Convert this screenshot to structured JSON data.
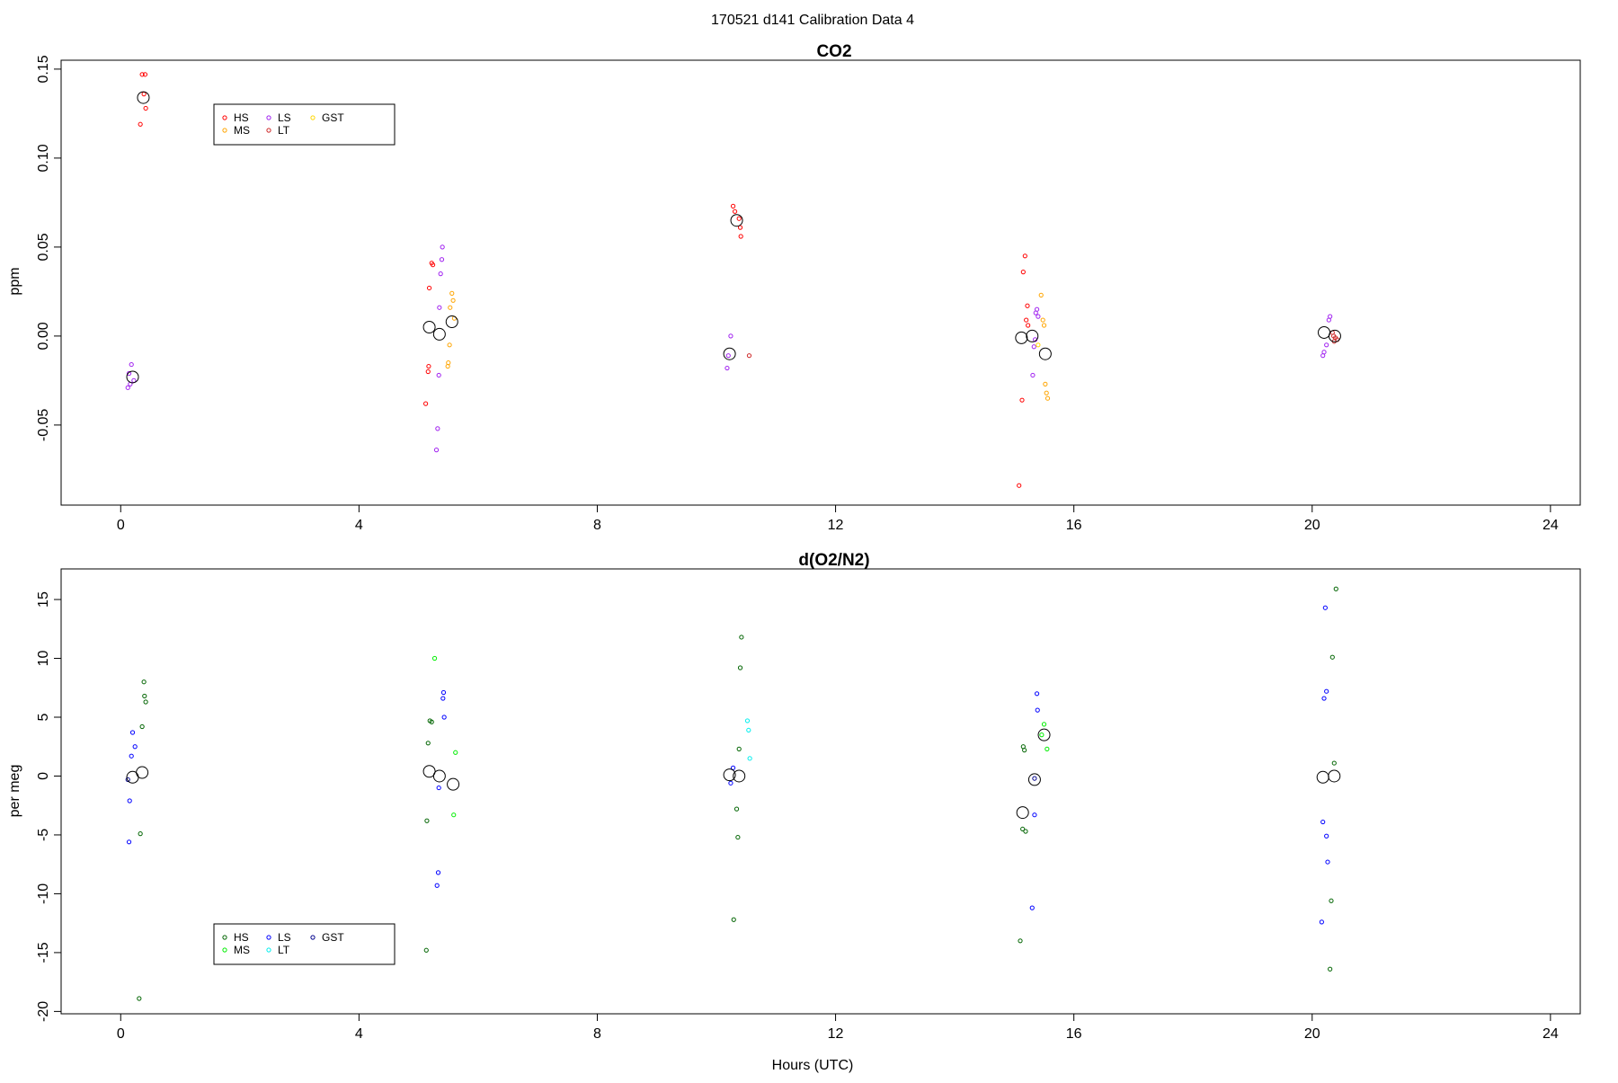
{
  "header": {
    "title": "170521   d141   Calibration Data 4"
  },
  "chart_data": [
    {
      "type": "scatter",
      "title": "CO2",
      "xlabel": "",
      "ylabel": "ppm",
      "xlim": [
        -1,
        24.5
      ],
      "ylim": [
        -0.095,
        0.155
      ],
      "xticks": [
        0,
        4,
        8,
        12,
        16,
        20,
        24
      ],
      "yticks": [
        -0.05,
        0.0,
        0.05,
        0.1,
        0.15
      ],
      "ytick_labels": [
        "-0.05",
        "0.00",
        "0.05",
        "0.10",
        "0.15"
      ],
      "grid": false,
      "legend_position": "top-left",
      "legend": [
        {
          "label": "HS",
          "color": "#ff0000",
          "marker": "circle"
        },
        {
          "label": "MS",
          "color": "#ffa500",
          "marker": "circle"
        },
        {
          "label": "LS",
          "color": "#a020f0",
          "marker": "circle"
        },
        {
          "label": "LT",
          "color": "#cd2626",
          "marker": "circle"
        },
        {
          "label": "GST",
          "color": "#ffd700",
          "marker": "circle"
        }
      ],
      "series": [
        {
          "name": "HS",
          "color": "#ff0000",
          "points": [
            [
              0.36,
              0.147
            ],
            [
              0.41,
              0.147
            ],
            [
              0.39,
              0.136
            ],
            [
              0.42,
              0.128
            ],
            [
              0.33,
              0.119
            ],
            [
              5.22,
              0.041
            ],
            [
              5.24,
              0.04
            ],
            [
              5.18,
              0.027
            ],
            [
              5.17,
              -0.017
            ],
            [
              5.16,
              -0.02
            ],
            [
              5.12,
              -0.038
            ],
            [
              10.28,
              0.073
            ],
            [
              10.31,
              0.07
            ],
            [
              10.38,
              0.066
            ],
            [
              10.4,
              0.061
            ],
            [
              10.41,
              0.056
            ],
            [
              15.18,
              0.045
            ],
            [
              15.15,
              0.036
            ],
            [
              15.22,
              0.017
            ],
            [
              15.2,
              0.009
            ],
            [
              15.23,
              0.006
            ],
            [
              15.13,
              -0.036
            ],
            [
              15.08,
              -0.084
            ]
          ]
        },
        {
          "name": "MS",
          "color": "#ffa500",
          "points": [
            [
              5.56,
              0.024
            ],
            [
              5.58,
              0.02
            ],
            [
              5.53,
              0.016
            ],
            [
              5.6,
              0.01
            ],
            [
              5.52,
              -0.005
            ],
            [
              5.5,
              -0.015
            ],
            [
              5.49,
              -0.017
            ],
            [
              15.45,
              0.023
            ],
            [
              15.48,
              0.009
            ],
            [
              15.5,
              0.006
            ],
            [
              15.52,
              -0.027
            ],
            [
              15.54,
              -0.032
            ],
            [
              15.56,
              -0.035
            ]
          ]
        },
        {
          "name": "LS",
          "color": "#a020f0",
          "points": [
            [
              0.18,
              -0.016
            ],
            [
              0.14,
              -0.021
            ],
            [
              0.22,
              -0.025
            ],
            [
              0.16,
              -0.027
            ],
            [
              0.12,
              -0.029
            ],
            [
              5.4,
              0.05
            ],
            [
              5.39,
              0.043
            ],
            [
              5.37,
              0.035
            ],
            [
              5.35,
              0.016
            ],
            [
              5.34,
              -0.022
            ],
            [
              5.32,
              -0.052
            ],
            [
              5.3,
              -0.064
            ],
            [
              10.24,
              0.0
            ],
            [
              10.2,
              -0.011
            ],
            [
              10.18,
              -0.018
            ],
            [
              15.38,
              0.015
            ],
            [
              15.36,
              0.013
            ],
            [
              15.4,
              0.011
            ],
            [
              15.35,
              -0.002
            ],
            [
              15.33,
              -0.006
            ],
            [
              15.31,
              -0.022
            ],
            [
              20.3,
              0.011
            ],
            [
              20.28,
              0.009
            ],
            [
              20.24,
              -0.005
            ],
            [
              20.2,
              -0.009
            ],
            [
              20.18,
              -0.011
            ]
          ]
        },
        {
          "name": "LT",
          "color": "#cd2626",
          "points": [
            [
              10.55,
              -0.011
            ],
            [
              20.34,
              0.002
            ],
            [
              20.36,
              0.0
            ],
            [
              20.39,
              -0.001
            ],
            [
              20.42,
              -0.002
            ],
            [
              20.37,
              -0.003
            ]
          ]
        },
        {
          "name": "GST",
          "color": "#ffd700",
          "points": [
            [
              15.4,
              -0.005
            ]
          ]
        }
      ],
      "means": [
        [
          0.38,
          0.134
        ],
        [
          0.2,
          -0.023
        ],
        [
          5.18,
          0.005
        ],
        [
          5.35,
          0.001
        ],
        [
          5.56,
          0.008
        ],
        [
          10.34,
          0.065
        ],
        [
          10.22,
          -0.01
        ],
        [
          15.12,
          -0.001
        ],
        [
          15.3,
          0.0
        ],
        [
          15.52,
          -0.01
        ],
        [
          20.2,
          0.002
        ],
        [
          20.38,
          0.0
        ]
      ]
    },
    {
      "type": "scatter",
      "title": "d(O2/N2)",
      "xlabel": "Hours (UTC)",
      "ylabel": "per meg",
      "xlim": [
        -1,
        24.5
      ],
      "ylim": [
        -20.2,
        17.6
      ],
      "xticks": [
        0,
        4,
        8,
        12,
        16,
        20,
        24
      ],
      "yticks": [
        -20,
        -15,
        -10,
        -5,
        0,
        5,
        10,
        15
      ],
      "ytick_labels": [
        "-20",
        "-15",
        "-10",
        "-5",
        "0",
        "5",
        "10",
        "15"
      ],
      "grid": false,
      "legend_position": "bottom-left",
      "legend": [
        {
          "label": "HS",
          "color": "#006400",
          "marker": "circle"
        },
        {
          "label": "MS",
          "color": "#00ee00",
          "marker": "circle"
        },
        {
          "label": "LS",
          "color": "#0000ff",
          "marker": "circle"
        },
        {
          "label": "LT",
          "color": "#00eeee",
          "marker": "circle"
        },
        {
          "label": "GST",
          "color": "#00008b",
          "marker": "circle"
        }
      ],
      "series": [
        {
          "name": "HS",
          "color": "#006400",
          "points": [
            [
              0.39,
              8.0
            ],
            [
              0.4,
              6.8
            ],
            [
              0.42,
              6.3
            ],
            [
              0.36,
              4.2
            ],
            [
              0.33,
              -4.9
            ],
            [
              0.31,
              -18.9
            ],
            [
              5.22,
              4.6
            ],
            [
              5.19,
              4.7
            ],
            [
              5.16,
              2.8
            ],
            [
              5.14,
              -3.8
            ],
            [
              5.13,
              -14.8
            ],
            [
              10.42,
              11.8
            ],
            [
              10.4,
              9.2
            ],
            [
              10.38,
              2.3
            ],
            [
              10.34,
              -2.8
            ],
            [
              10.36,
              -5.2
            ],
            [
              10.29,
              -12.2
            ],
            [
              15.15,
              2.5
            ],
            [
              15.17,
              2.2
            ],
            [
              15.14,
              -4.5
            ],
            [
              15.19,
              -4.7
            ],
            [
              15.1,
              -14.0
            ],
            [
              20.34,
              10.1
            ],
            [
              20.37,
              1.1
            ],
            [
              20.32,
              -10.6
            ],
            [
              20.3,
              -16.4
            ],
            [
              20.4,
              15.9
            ]
          ]
        },
        {
          "name": "MS",
          "color": "#00ee00",
          "points": [
            [
              5.27,
              10.0
            ],
            [
              5.62,
              2.0
            ],
            [
              5.59,
              -3.3
            ],
            [
              15.5,
              4.4
            ],
            [
              15.55,
              2.3
            ],
            [
              15.46,
              3.5
            ]
          ]
        },
        {
          "name": "LS",
          "color": "#0000ff",
          "points": [
            [
              0.2,
              3.7
            ],
            [
              0.24,
              2.5
            ],
            [
              0.18,
              1.7
            ],
            [
              0.15,
              -2.1
            ],
            [
              0.14,
              -5.6
            ],
            [
              5.42,
              7.1
            ],
            [
              5.41,
              6.6
            ],
            [
              5.43,
              5.0
            ],
            [
              5.34,
              -1.0
            ],
            [
              5.33,
              -8.2
            ],
            [
              5.31,
              -9.3
            ],
            [
              10.28,
              0.7
            ],
            [
              10.24,
              -0.6
            ],
            [
              15.38,
              7.0
            ],
            [
              15.39,
              5.6
            ],
            [
              15.34,
              -3.3
            ],
            [
              15.3,
              -11.2
            ],
            [
              20.22,
              14.3
            ],
            [
              20.24,
              7.2
            ],
            [
              20.2,
              6.6
            ],
            [
              20.18,
              -3.9
            ],
            [
              20.24,
              -5.1
            ],
            [
              20.26,
              -7.3
            ],
            [
              20.16,
              -12.4
            ]
          ]
        },
        {
          "name": "LT",
          "color": "#00eeee",
          "points": [
            [
              10.52,
              4.7
            ],
            [
              10.54,
              3.9
            ],
            [
              10.56,
              1.5
            ]
          ]
        },
        {
          "name": "GST",
          "color": "#00008b",
          "points": [
            [
              0.12,
              -0.3
            ],
            [
              15.34,
              -0.2
            ]
          ]
        }
      ],
      "means": [
        [
          0.2,
          -0.1
        ],
        [
          0.36,
          0.3
        ],
        [
          5.18,
          0.4
        ],
        [
          5.35,
          0.0
        ],
        [
          5.58,
          -0.7
        ],
        [
          10.22,
          0.1
        ],
        [
          10.38,
          0.0
        ],
        [
          15.14,
          -3.1
        ],
        [
          15.34,
          -0.3
        ],
        [
          15.5,
          3.5
        ],
        [
          20.18,
          -0.1
        ],
        [
          20.37,
          0.0
        ]
      ]
    }
  ]
}
